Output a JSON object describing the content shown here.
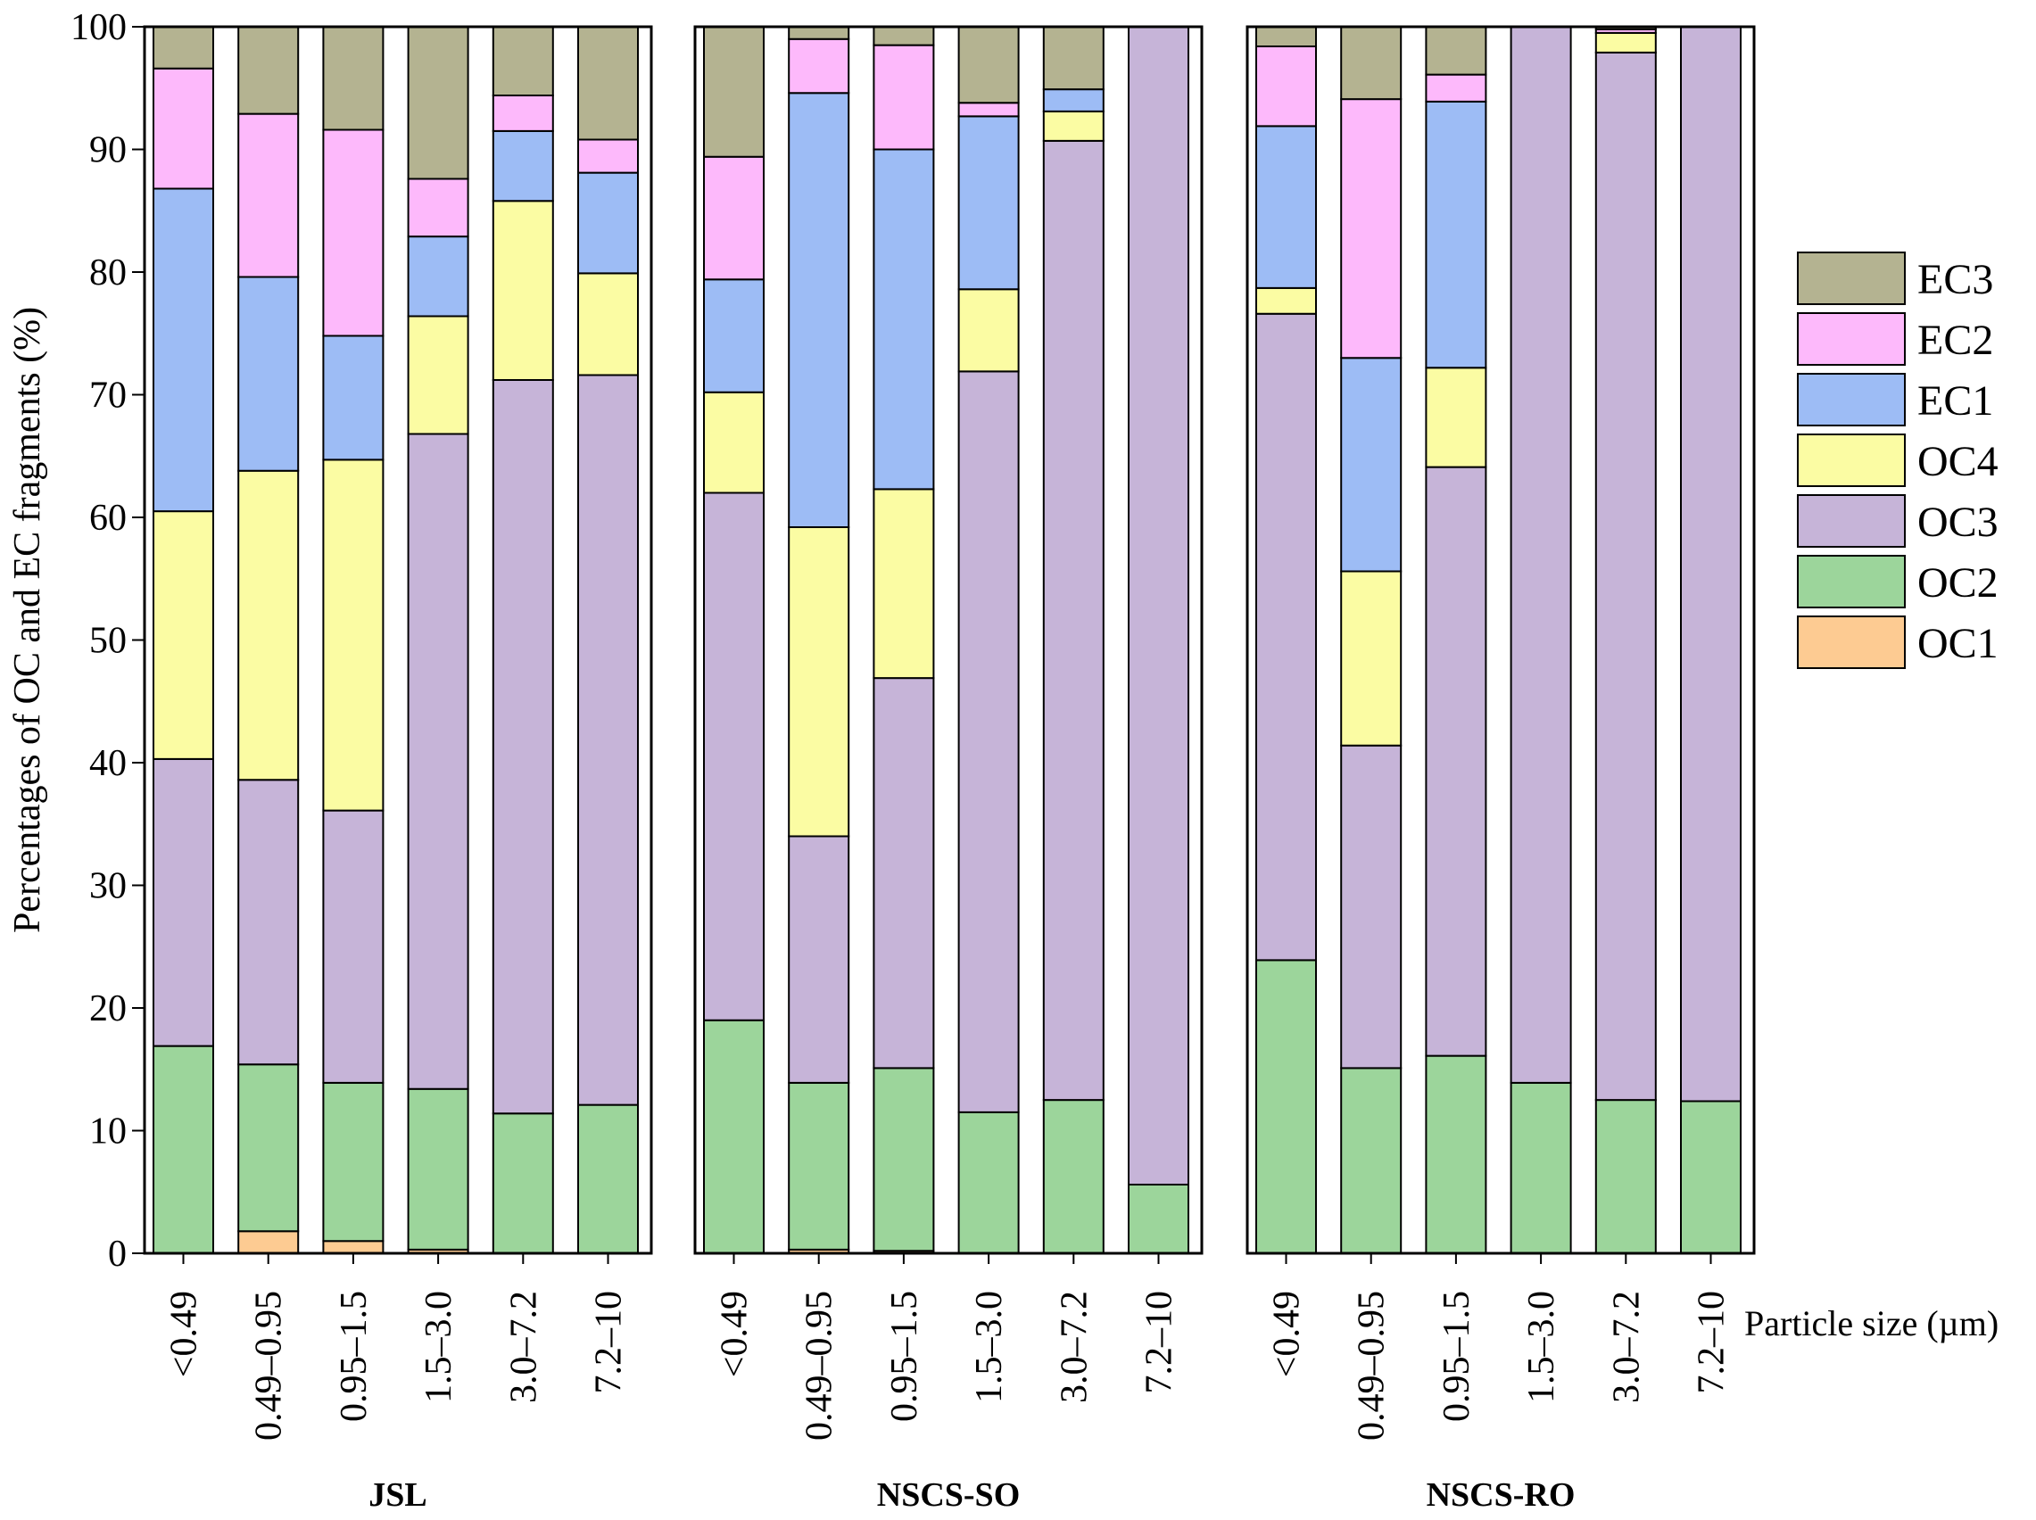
{
  "chart_data": {
    "type": "bar",
    "stacked": true,
    "ylabel": "Percentages of OC and EC fragments (%)",
    "xlabel": "Particle size (µm)",
    "ylim": [
      0,
      100
    ],
    "yticks": [
      0,
      10,
      20,
      30,
      40,
      50,
      60,
      70,
      80,
      90,
      100
    ],
    "categories": [
      "<0.49",
      "0.49–0.95",
      "0.95–1.5",
      "1.5–3.0",
      "3.0–7.2",
      "7.2–10"
    ],
    "series": [
      {
        "name": "OC1",
        "color": "#FDCB92"
      },
      {
        "name": "OC2",
        "color": "#9CD59B"
      },
      {
        "name": "OC3",
        "color": "#C6B4D8"
      },
      {
        "name": "OC4",
        "color": "#FBFCA3"
      },
      {
        "name": "EC1",
        "color": "#9DBCF5"
      },
      {
        "name": "EC2",
        "color": "#FDB9FB"
      },
      {
        "name": "EC3",
        "color": "#B4B391"
      }
    ],
    "legend_order": [
      "EC3",
      "EC2",
      "EC1",
      "OC4",
      "OC3",
      "OC2",
      "OC1"
    ],
    "groups": [
      {
        "name": "JSL",
        "values": {
          "OC1": [
            0,
            1.8,
            1.0,
            0.3,
            0,
            0
          ],
          "OC2": [
            16.9,
            13.6,
            12.9,
            13.1,
            11.4,
            12.1
          ],
          "OC3": [
            23.4,
            23.2,
            22.2,
            53.4,
            59.8,
            59.5
          ],
          "OC4": [
            20.2,
            25.2,
            28.6,
            9.6,
            14.6,
            8.3
          ],
          "EC1": [
            26.3,
            15.8,
            10.1,
            6.5,
            5.7,
            8.2
          ],
          "EC2": [
            9.8,
            13.3,
            16.8,
            4.7,
            2.9,
            2.7
          ],
          "EC3": [
            3.4,
            7.1,
            8.4,
            12.4,
            5.6,
            9.2
          ]
        }
      },
      {
        "name": "NSCS-SO",
        "values": {
          "OC1": [
            0,
            0.3,
            0.2,
            0,
            0,
            0
          ],
          "OC2": [
            19.0,
            13.6,
            14.9,
            11.5,
            12.5,
            5.6
          ],
          "OC3": [
            43.0,
            20.1,
            31.8,
            60.4,
            78.2,
            94.4
          ],
          "OC4": [
            8.2,
            25.2,
            15.4,
            6.7,
            2.4,
            0
          ],
          "EC1": [
            9.2,
            35.4,
            27.7,
            14.1,
            1.8,
            0
          ],
          "EC2": [
            10.0,
            4.4,
            8.5,
            1.1,
            0,
            0
          ],
          "EC3": [
            10.6,
            1.0,
            1.5,
            6.2,
            5.1,
            0
          ]
        }
      },
      {
        "name": "NSCS-RO",
        "values": {
          "OC1": [
            0,
            0,
            0,
            0,
            0,
            0
          ],
          "OC2": [
            23.9,
            15.1,
            16.1,
            13.9,
            12.5,
            12.4
          ],
          "OC3": [
            52.7,
            26.3,
            48.0,
            86.1,
            85.4,
            87.6
          ],
          "OC4": [
            2.1,
            14.2,
            8.1,
            0,
            1.6,
            0
          ],
          "EC1": [
            13.2,
            17.4,
            21.7,
            0,
            0,
            0
          ],
          "EC2": [
            6.5,
            21.1,
            2.2,
            0,
            0.3,
            0
          ],
          "EC3": [
            1.6,
            5.9,
            3.9,
            0,
            0.2,
            0
          ]
        }
      }
    ]
  }
}
